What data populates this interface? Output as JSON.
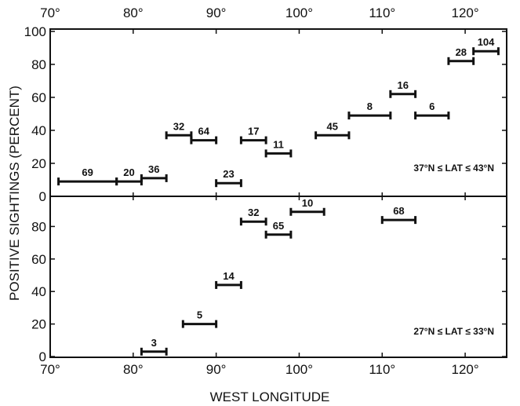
{
  "chart_data": {
    "type": "range-bar",
    "xlabel": "WEST LONGITUDE",
    "ylabel": "POSITIVE SIGHTINGS (PERCENT)",
    "xlim": [
      70,
      125
    ],
    "x_ticks": [
      70,
      80,
      90,
      100,
      110,
      120
    ],
    "x_tick_labels_top": [
      "70°",
      "80°",
      "90°",
      "100°",
      "110°",
      "120°"
    ],
    "x_tick_labels_bottom": [
      "70°",
      "80°",
      "90°",
      "100°",
      "110°",
      "120°"
    ],
    "panels": [
      {
        "label": "37°N ≤ LAT ≤ 43°N",
        "ylim": [
          0,
          100
        ],
        "y_ticks": [
          0,
          20,
          40,
          60,
          80,
          100
        ],
        "y_tick_labels": [
          "0",
          "20",
          "40",
          "60",
          "80",
          "100"
        ],
        "bars": [
          {
            "x_start": 71,
            "x_end": 78,
            "value": 9,
            "label": "69"
          },
          {
            "x_start": 78,
            "x_end": 81,
            "value": 9,
            "label": "20"
          },
          {
            "x_start": 81,
            "x_end": 84,
            "value": 11,
            "label": "36"
          },
          {
            "x_start": 84,
            "x_end": 87,
            "value": 37,
            "label": "32"
          },
          {
            "x_start": 87,
            "x_end": 90,
            "value": 34,
            "label": "64"
          },
          {
            "x_start": 90,
            "x_end": 93,
            "value": 8,
            "label": "23"
          },
          {
            "x_start": 93,
            "x_end": 96,
            "value": 34,
            "label": "17"
          },
          {
            "x_start": 96,
            "x_end": 99,
            "value": 26,
            "label": "11"
          },
          {
            "x_start": 102,
            "x_end": 106,
            "value": 37,
            "label": "45"
          },
          {
            "x_start": 106,
            "x_end": 111,
            "value": 49,
            "label": "8"
          },
          {
            "x_start": 111,
            "x_end": 114,
            "value": 62,
            "label": "16"
          },
          {
            "x_start": 114,
            "x_end": 118,
            "value": 49,
            "label": "6"
          },
          {
            "x_start": 118,
            "x_end": 121,
            "value": 82,
            "label": "28"
          },
          {
            "x_start": 121,
            "x_end": 124,
            "value": 88,
            "label": "104"
          }
        ]
      },
      {
        "label": "27°N ≤ LAT ≤ 33°N",
        "ylim": [
          0,
          100
        ],
        "y_ticks": [
          0,
          20,
          40,
          60,
          80
        ],
        "y_tick_labels": [
          "0",
          "20",
          "40",
          "60",
          "80"
        ],
        "bars": [
          {
            "x_start": 81,
            "x_end": 84,
            "value": 3,
            "label": "3"
          },
          {
            "x_start": 86,
            "x_end": 90,
            "value": 20,
            "label": "5"
          },
          {
            "x_start": 90,
            "x_end": 93,
            "value": 44,
            "label": "14"
          },
          {
            "x_start": 93,
            "x_end": 96,
            "value": 83,
            "label": "32"
          },
          {
            "x_start": 96,
            "x_end": 99,
            "value": 75,
            "label": "65"
          },
          {
            "x_start": 99,
            "x_end": 103,
            "value": 89,
            "label": "10"
          },
          {
            "x_start": 110,
            "x_end": 114,
            "value": 84,
            "label": "68"
          }
        ]
      }
    ]
  }
}
